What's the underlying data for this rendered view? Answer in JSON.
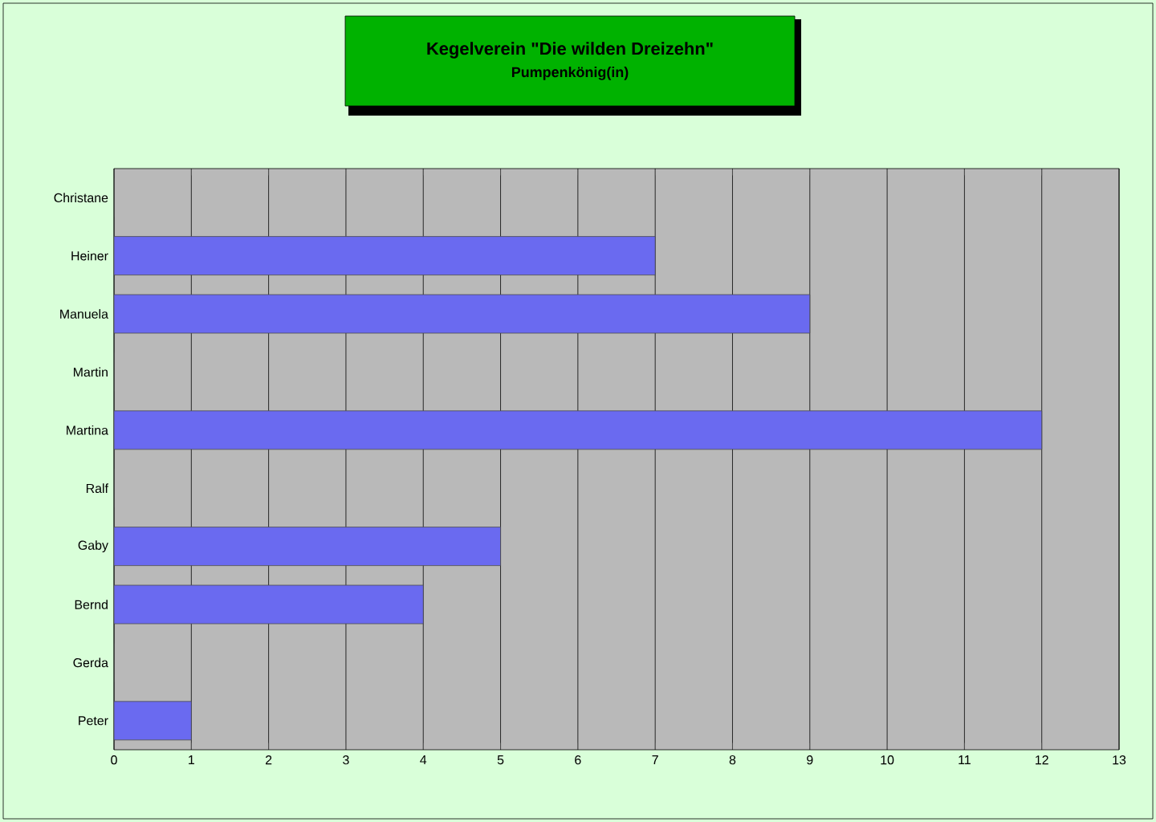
{
  "chart_data": {
    "type": "bar",
    "orientation": "horizontal",
    "title": "Kegelverein \"Die wilden Dreizehn\"",
    "subtitle": "Pumpenkönig(in)",
    "categories": [
      "Christane",
      "Heiner",
      "Manuela",
      "Martin",
      "Martina",
      "Ralf",
      "Gaby",
      "Bernd",
      "Gerda",
      "Peter"
    ],
    "values": [
      0,
      7,
      9,
      0,
      12,
      0,
      5,
      4,
      0,
      1
    ],
    "color": "#6a6af0",
    "xlim": [
      0,
      13
    ],
    "xticks": [
      0,
      1,
      2,
      3,
      4,
      5,
      6,
      7,
      8,
      9,
      10,
      11,
      12,
      13
    ],
    "grid": "x"
  }
}
